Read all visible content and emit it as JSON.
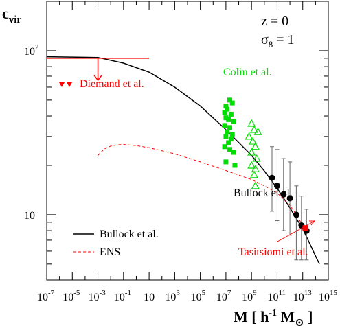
{
  "chart_data": {
    "type": "scatter",
    "x_scale": "log",
    "y_scale": "log",
    "xlim_exp": [
      -7,
      15
    ],
    "ylim": [
      4,
      200
    ],
    "y_axis_label": "c_vir",
    "x_axis_label": "M [ h^-1 M_sun ]",
    "annotations": [
      "z = 0",
      "σ8 = 1"
    ],
    "x_tick_exponents": [
      -7,
      -5,
      -3,
      -1,
      1,
      3,
      5,
      7,
      9,
      11,
      13,
      15
    ],
    "x_tick_labels": [
      "10^-7",
      "10^-5",
      "10^-3",
      "10^-1",
      "10",
      "10^3",
      "10^5",
      "10^7",
      "10^9",
      "10^11",
      "10^13",
      "10^15"
    ],
    "y_ticks": [
      10,
      100
    ],
    "y_tick_labels": [
      "10",
      "10^2"
    ],
    "series": [
      {
        "name": "Bullock et al.",
        "kind": "line",
        "style": "solid",
        "color": "#000000",
        "points": [
          [
            -7,
            92
          ],
          [
            -3,
            91
          ],
          [
            -1,
            84
          ],
          [
            1,
            74
          ],
          [
            3,
            60
          ],
          [
            5,
            46
          ],
          [
            7,
            33
          ],
          [
            9,
            23
          ],
          [
            10,
            18.5
          ],
          [
            11,
            14.5
          ],
          [
            12,
            11
          ],
          [
            13,
            8.2
          ],
          [
            13.5,
            6.8
          ],
          [
            14,
            5.6
          ],
          [
            14.3,
            5.0
          ]
        ]
      },
      {
        "name": "ENS",
        "kind": "line",
        "style": "dashed",
        "color": "#ff0000",
        "points": [
          [
            -3,
            23
          ],
          [
            -2.5,
            25.2
          ],
          [
            -2,
            26.2
          ],
          [
            -1.5,
            26.7
          ],
          [
            -1,
            26.8
          ],
          [
            0,
            26.4
          ],
          [
            1,
            25.6
          ],
          [
            3,
            23.5
          ],
          [
            5,
            21
          ],
          [
            7,
            18.6
          ],
          [
            9,
            16.4
          ],
          [
            10,
            15
          ],
          [
            11,
            13.6
          ],
          [
            12,
            11.4
          ],
          [
            12.5,
            10
          ],
          [
            13,
            8.6
          ],
          [
            13.5,
            7.8
          ]
        ]
      },
      {
        "name": "Bullock et al.",
        "kind": "points",
        "marker": "circle",
        "color": "#000000",
        "points": [
          {
            "x": 10.6,
            "y": 16.8,
            "ylo": 10.5,
            "yhi": 26
          },
          {
            "x": 11.0,
            "y": 15.0,
            "ylo": 9.2,
            "yhi": 25
          },
          {
            "x": 11.5,
            "y": 13.3,
            "ylo": 8.0,
            "yhi": 22
          },
          {
            "x": 12.0,
            "y": 12.6,
            "ylo": 7.5,
            "yhi": 21
          },
          {
            "x": 12.5,
            "y": 10.0,
            "ylo": 5.3,
            "yhi": 15
          },
          {
            "x": 12.9,
            "y": 8.6,
            "ylo": 5.3,
            "yhi": 13
          },
          {
            "x": 13.3,
            "y": 8.0,
            "ylo": 5.3,
            "yhi": 10.8
          }
        ]
      },
      {
        "name": "Tasitsiomi et al.",
        "kind": "points",
        "marker": "square",
        "color": "#ff0000",
        "points": [
          {
            "x": 13.2,
            "y": 8.3
          }
        ]
      },
      {
        "name": "Colin et al.",
        "kind": "points",
        "marker": "square",
        "color": "#00dd00",
        "points": [
          {
            "x": 7.0,
            "y": 46
          },
          {
            "x": 7.1,
            "y": 44
          },
          {
            "x": 7.3,
            "y": 50
          },
          {
            "x": 7.5,
            "y": 48
          },
          {
            "x": 6.9,
            "y": 42
          },
          {
            "x": 7.4,
            "y": 41
          },
          {
            "x": 7.0,
            "y": 39
          },
          {
            "x": 7.2,
            "y": 38
          },
          {
            "x": 7.6,
            "y": 37
          },
          {
            "x": 6.9,
            "y": 35
          },
          {
            "x": 7.3,
            "y": 34
          },
          {
            "x": 7.1,
            "y": 32
          },
          {
            "x": 7.5,
            "y": 31
          },
          {
            "x": 7.0,
            "y": 30
          },
          {
            "x": 7.4,
            "y": 29
          },
          {
            "x": 7.2,
            "y": 27.5
          },
          {
            "x": 6.9,
            "y": 26
          },
          {
            "x": 7.3,
            "y": 25
          },
          {
            "x": 7.6,
            "y": 24
          },
          {
            "x": 7.0,
            "y": 21
          },
          {
            "x": 7.7,
            "y": 20
          }
        ]
      },
      {
        "name": "Colin et al.",
        "kind": "points",
        "marker": "triangle-open",
        "color": "#00dd00",
        "points": [
          {
            "x": 9.0,
            "y": 36
          },
          {
            "x": 9.2,
            "y": 33
          },
          {
            "x": 9.5,
            "y": 32
          },
          {
            "x": 8.8,
            "y": 30
          },
          {
            "x": 9.1,
            "y": 28
          },
          {
            "x": 9.3,
            "y": 26
          },
          {
            "x": 9.0,
            "y": 24
          },
          {
            "x": 9.4,
            "y": 22
          },
          {
            "x": 9.0,
            "y": 20
          },
          {
            "x": 9.3,
            "y": 19
          },
          {
            "x": 9.2,
            "y": 17.5
          },
          {
            "x": 9.3,
            "y": 15
          }
        ]
      },
      {
        "name": "Diemand et al.",
        "kind": "upper-limit",
        "color": "#ff0000",
        "x_range": [
          -7,
          1
        ],
        "y": 90,
        "arrow_x": -3,
        "arrow_to_y": 66
      }
    ],
    "legend": [
      {
        "label": "Bullock et al.",
        "style": "solid",
        "color": "#000000"
      },
      {
        "label": "ENS",
        "style": "dashed",
        "color": "#ff0000"
      }
    ],
    "labels": [
      {
        "text": "Colin et al.",
        "color": "#00dd00"
      },
      {
        "text": "Diemand et al.",
        "color": "#ff0000"
      },
      {
        "text": "Bullock et al.",
        "color": "#000000"
      },
      {
        "text": "Tasitsiomi et al.",
        "color": "#ff0000"
      }
    ]
  }
}
